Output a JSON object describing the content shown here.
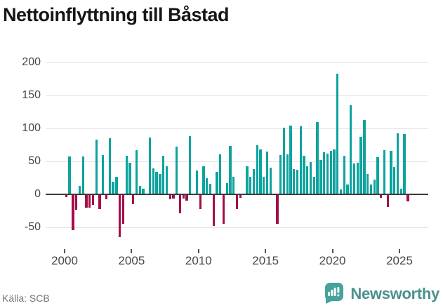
{
  "header": {
    "title": "Nettoinflyttning till Båstad"
  },
  "footer": {
    "source_label": "Källa: SCB",
    "brand": "Newsworthy"
  },
  "colors": {
    "positive_bar": "#0da39e",
    "negative_bar": "#a50d4a",
    "gridline": "#e4e4e4",
    "zero_line": "#3c3c3c",
    "axis_text": "#474747",
    "title_text": "#161616",
    "source_text": "#757575",
    "brand_teal": "#4a908c",
    "badge_teal": "#46a39b"
  },
  "chart_data": {
    "type": "bar",
    "title": "Nettoinflyttning till Båstad",
    "xlabel": "",
    "ylabel": "",
    "frequency": "quarterly",
    "start_period": "2000 Q1",
    "end_period": "2025 Q3",
    "x_tick_labels": [
      "2000",
      "2005",
      "2010",
      "2015",
      "2020",
      "2025"
    ],
    "y_ticks": [
      200,
      150,
      100,
      50,
      0,
      -50
    ],
    "y_tick_labels": [
      "200",
      "150",
      "100",
      "50",
      "0",
      "-50"
    ],
    "ylim": [
      -80,
      210
    ],
    "grid": true,
    "legend": false,
    "values": [
      -3,
      57,
      -53,
      -22,
      13,
      57,
      -19,
      -19,
      -15,
      83,
      -21,
      60,
      -6,
      85,
      19,
      27,
      -64,
      -44,
      58,
      48,
      -14,
      67,
      13,
      9,
      0,
      86,
      39,
      34,
      31,
      59,
      43,
      -6,
      -5,
      72,
      -28,
      -5,
      -8,
      88,
      0,
      36,
      -21,
      43,
      24,
      16,
      -47,
      34,
      61,
      -44,
      17,
      73,
      27,
      -21,
      -4,
      0,
      43,
      27,
      38,
      74,
      68,
      27,
      65,
      40,
      0,
      -44,
      60,
      101,
      61,
      104,
      38,
      37,
      103,
      59,
      43,
      49,
      27,
      110,
      52,
      64,
      62,
      66,
      68,
      183,
      7,
      58,
      15,
      135,
      47,
      48,
      87,
      113,
      31,
      15,
      22,
      56,
      -4,
      67,
      -18,
      66,
      41,
      93,
      9,
      92,
      -10
    ]
  }
}
